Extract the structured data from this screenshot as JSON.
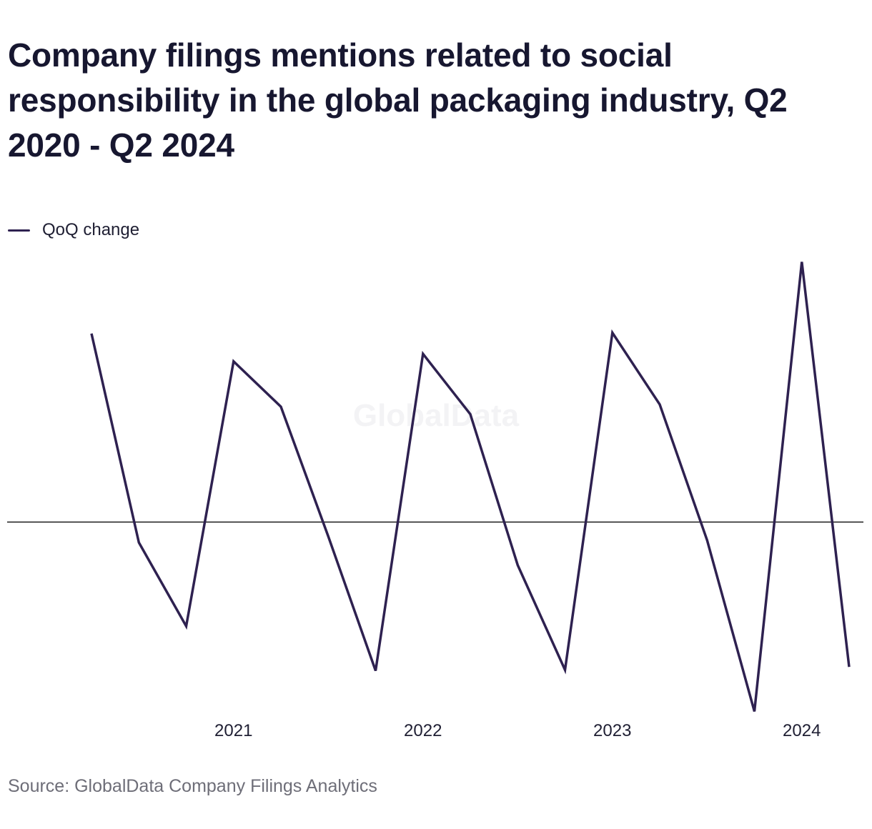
{
  "title": "Company filings mentions related to social responsibility in the global packaging industry, Q2 2020 - Q2 2024",
  "legend": {
    "label": "QoQ change",
    "color": "#2e2150"
  },
  "source": "Source: GlobalData Company Filings Analytics",
  "watermark": "GlobalData",
  "chart_data": {
    "type": "line",
    "x": [
      "Q2 2020",
      "Q3 2020",
      "Q4 2020",
      "Q1 2021",
      "Q2 2021",
      "Q3 2021",
      "Q4 2021",
      "Q1 2022",
      "Q2 2022",
      "Q3 2022",
      "Q4 2022",
      "Q1 2023",
      "Q2 2023",
      "Q3 2023",
      "Q4 2023",
      "Q1 2024",
      "Q2 2024"
    ],
    "x_tick_labels": [
      "2021",
      "2022",
      "2023",
      "2024"
    ],
    "x_tick_positions": [
      3,
      7,
      11,
      15
    ],
    "series": [
      {
        "name": "QoQ change",
        "color": "#2e2150",
        "values": [
          25,
          -2.7,
          -13.8,
          21.3,
          15.3,
          -1.9,
          -19.7,
          22.3,
          14.3,
          -5.7,
          -19.6,
          25.1,
          15.6,
          -2.4,
          -25.1,
          34.5,
          -19.2
        ]
      }
    ],
    "y_zero_line": true,
    "ylim": [
      -26,
      37
    ],
    "y_axis_labels_shown": false,
    "grid": false,
    "legend_position": "top-left",
    "xlabel": "",
    "ylabel": ""
  }
}
